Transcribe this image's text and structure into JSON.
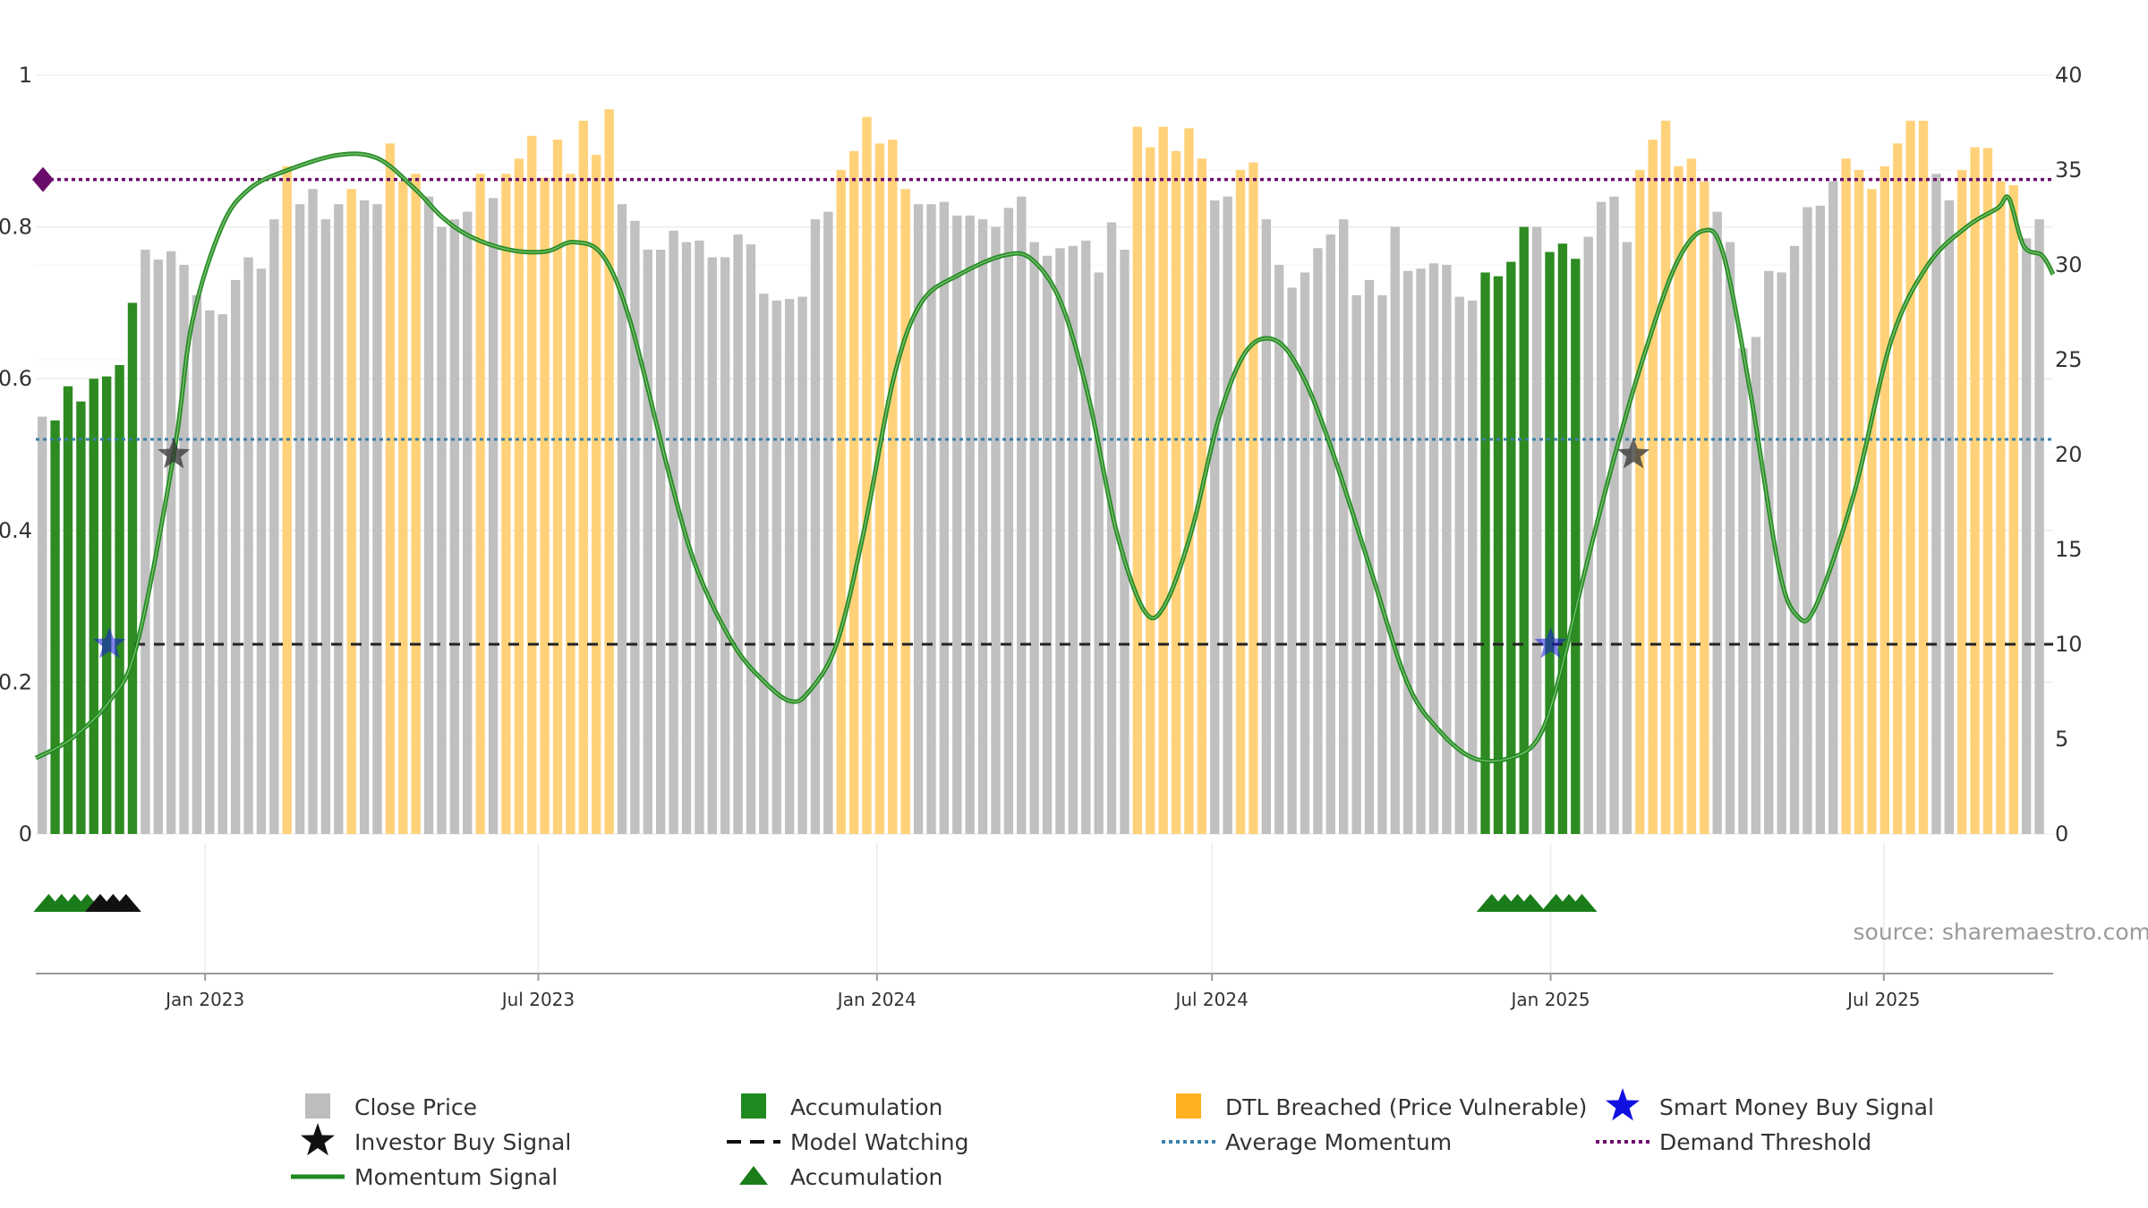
{
  "colors": {
    "bar_default": "#c0c0c0",
    "bar_accumulation": "#2e8b22",
    "bar_dtl": "#ffd27a",
    "momentum": "#1f8a1f",
    "average_momentum": "#3a7fa8",
    "demand_threshold": "#6a0d6a",
    "model_watching": "#222222",
    "smart_money": "#1a1adc",
    "investor_buy": "#333333"
  },
  "icons": {
    "smart_money": "blue-star-icon",
    "investor_buy": "black-star-icon",
    "accumulation_marker": "green-triangle-icon",
    "demand_marker": "purple-diamond-icon"
  },
  "source": "source: sharemaestro.com",
  "chart_data": {
    "type": "bar",
    "x_range": [
      "2022-10-01",
      "2025-10-01"
    ],
    "x_ticks": [
      {
        "date": "2023-01-01",
        "label": "Jan 2023"
      },
      {
        "date": "2023-07-01",
        "label": "Jul 2023"
      },
      {
        "date": "2024-01-01",
        "label": "Jan 2024"
      },
      {
        "date": "2024-07-01",
        "label": "Jul 2024"
      },
      {
        "date": "2025-01-01",
        "label": "Jan 2025"
      },
      {
        "date": "2025-07-01",
        "label": "Jul 2025"
      }
    ],
    "y_left": {
      "range": [
        0,
        1
      ],
      "ticks": [
        "0",
        "0.2",
        "0.4",
        "0.6",
        "0.8",
        "1"
      ]
    },
    "y_right": {
      "range": [
        0,
        40
      ],
      "ticks": [
        "0",
        "5",
        "10",
        "15",
        "20",
        "25",
        "30",
        "35",
        "40"
      ]
    },
    "grid": true,
    "legend_position": "bottom",
    "bars": {
      "name": "Close Price",
      "start_date": "2022-10-01",
      "step_days": 7,
      "values": [
        0.55,
        0.545,
        0.59,
        0.57,
        0.6,
        0.603,
        0.618,
        0.7,
        0.77,
        0.757,
        0.768,
        0.75,
        0.71,
        0.69,
        0.685,
        0.73,
        0.76,
        0.745,
        0.81,
        0.88,
        0.83,
        0.85,
        0.81,
        0.83,
        0.85,
        0.835,
        0.83,
        0.91,
        0.86,
        0.87,
        0.84,
        0.8,
        0.81,
        0.82,
        0.87,
        0.838,
        0.87,
        0.89,
        0.92,
        0.865,
        0.915,
        0.87,
        0.94,
        0.895,
        0.955,
        0.83,
        0.808,
        0.77,
        0.77,
        0.795,
        0.78,
        0.782,
        0.76,
        0.76,
        0.79,
        0.777,
        0.712,
        0.703,
        0.705,
        0.708,
        0.81,
        0.82,
        0.875,
        0.9,
        0.945,
        0.91,
        0.915,
        0.85,
        0.83,
        0.83,
        0.833,
        0.815,
        0.815,
        0.81,
        0.8,
        0.825,
        0.84,
        0.78,
        0.762,
        0.772,
        0.775,
        0.782,
        0.74,
        0.806,
        0.77,
        0.932,
        0.905,
        0.932,
        0.9,
        0.93,
        0.89,
        0.835,
        0.84,
        0.875,
        0.885,
        0.81,
        0.75,
        0.72,
        0.74,
        0.772,
        0.79,
        0.81,
        0.71,
        0.73,
        0.71,
        0.8,
        0.742,
        0.745,
        0.752,
        0.75,
        0.708,
        0.703,
        0.74,
        0.735,
        0.754,
        0.8,
        0.8,
        0.767,
        0.778,
        0.758,
        0.787,
        0.833,
        0.84,
        0.78,
        0.875,
        0.915,
        0.94,
        0.88,
        0.89,
        0.86,
        0.82,
        0.78,
        0.64,
        0.655,
        0.742,
        0.74,
        0.775,
        0.826,
        0.828,
        0.86,
        0.89,
        0.875,
        0.85,
        0.88,
        0.91,
        0.94,
        0.94,
        0.87,
        0.835,
        0.875,
        0.905,
        0.904,
        0.86,
        0.855,
        0.785,
        0.81
      ],
      "categories": [
        "G",
        "A",
        "A",
        "A",
        "A",
        "A",
        "A",
        "A",
        "G",
        "G",
        "G",
        "G",
        "G",
        "G",
        "G",
        "G",
        "G",
        "G",
        "G",
        "D",
        "G",
        "G",
        "G",
        "G",
        "D",
        "G",
        "G",
        "D",
        "D",
        "D",
        "G",
        "G",
        "G",
        "G",
        "D",
        "G",
        "D",
        "D",
        "D",
        "D",
        "D",
        "D",
        "D",
        "D",
        "D",
        "G",
        "G",
        "G",
        "G",
        "G",
        "G",
        "G",
        "G",
        "G",
        "G",
        "G",
        "G",
        "G",
        "G",
        "G",
        "G",
        "G",
        "D",
        "D",
        "D",
        "D",
        "D",
        "D",
        "G",
        "G",
        "G",
        "G",
        "G",
        "G",
        "G",
        "G",
        "G",
        "G",
        "G",
        "G",
        "G",
        "G",
        "G",
        "G",
        "G",
        "D",
        "D",
        "D",
        "D",
        "D",
        "D",
        "G",
        "G",
        "D",
        "D",
        "G",
        "G",
        "G",
        "G",
        "G",
        "G",
        "G",
        "G",
        "G",
        "G",
        "G",
        "G",
        "G",
        "G",
        "G",
        "G",
        "G",
        "A",
        "A",
        "A",
        "A",
        "G",
        "A",
        "A",
        "A",
        "G",
        "G",
        "G",
        "G",
        "D",
        "D",
        "D",
        "D",
        "D",
        "D",
        "G",
        "G",
        "G",
        "G",
        "G",
        "G",
        "G",
        "G",
        "G",
        "G",
        "D",
        "D",
        "D",
        "D",
        "D",
        "D",
        "D",
        "G",
        "G",
        "D",
        "D",
        "D",
        "D",
        "D",
        "G",
        "G"
      ],
      "category_names": {
        "G": "Close Price",
        "A": "Accumulation",
        "D": "DTL Breached (Price Vulnerable)"
      }
    },
    "series": [
      {
        "name": "Momentum Signal",
        "axis": "right",
        "points": [
          [
            "2022-10-01",
            4
          ],
          [
            "2022-10-20",
            5
          ],
          [
            "2022-11-10",
            7
          ],
          [
            "2022-11-25",
            10
          ],
          [
            "2022-12-15",
            20
          ],
          [
            "2022-12-25",
            27
          ],
          [
            "2023-01-10",
            32
          ],
          [
            "2023-01-25",
            34
          ],
          [
            "2023-02-15",
            35
          ],
          [
            "2023-03-15",
            35.8
          ],
          [
            "2023-04-05",
            35.6
          ],
          [
            "2023-04-25",
            34
          ],
          [
            "2023-05-10",
            32.5
          ],
          [
            "2023-05-25",
            31.5
          ],
          [
            "2023-06-15",
            30.8
          ],
          [
            "2023-07-05",
            30.7
          ],
          [
            "2023-07-20",
            31.2
          ],
          [
            "2023-08-05",
            30.5
          ],
          [
            "2023-08-20",
            27
          ],
          [
            "2023-09-10",
            19
          ],
          [
            "2023-09-25",
            14
          ],
          [
            "2023-10-15",
            10
          ],
          [
            "2023-11-01",
            8
          ],
          [
            "2023-11-15",
            7
          ],
          [
            "2023-11-25",
            7.5
          ],
          [
            "2023-12-10",
            10
          ],
          [
            "2023-12-25",
            16
          ],
          [
            "2024-01-10",
            24
          ],
          [
            "2024-01-25",
            28
          ],
          [
            "2024-02-15",
            29.5
          ],
          [
            "2024-03-10",
            30.5
          ],
          [
            "2024-03-25",
            30.3
          ],
          [
            "2024-04-10",
            28
          ],
          [
            "2024-04-25",
            23
          ],
          [
            "2024-05-10",
            16
          ],
          [
            "2024-05-25",
            11.8
          ],
          [
            "2024-06-05",
            12
          ],
          [
            "2024-06-20",
            16
          ],
          [
            "2024-07-05",
            22
          ],
          [
            "2024-07-20",
            25.5
          ],
          [
            "2024-08-05",
            26
          ],
          [
            "2024-08-20",
            24
          ],
          [
            "2024-09-05",
            20
          ],
          [
            "2024-09-25",
            14
          ],
          [
            "2024-10-15",
            8
          ],
          [
            "2024-11-01",
            5.5
          ],
          [
            "2024-11-20",
            4
          ],
          [
            "2024-12-10",
            4
          ],
          [
            "2024-12-25",
            5
          ],
          [
            "2025-01-05",
            8
          ],
          [
            "2025-01-20",
            14
          ],
          [
            "2025-02-05",
            20
          ],
          [
            "2025-02-20",
            25
          ],
          [
            "2025-03-10",
            30
          ],
          [
            "2025-03-25",
            31.8
          ],
          [
            "2025-04-05",
            30.5
          ],
          [
            "2025-04-20",
            23
          ],
          [
            "2025-05-05",
            14
          ],
          [
            "2025-05-15",
            11.5
          ],
          [
            "2025-05-25",
            12
          ],
          [
            "2025-06-15",
            18
          ],
          [
            "2025-07-05",
            26
          ],
          [
            "2025-07-25",
            30
          ],
          [
            "2025-08-15",
            32
          ],
          [
            "2025-09-01",
            33
          ],
          [
            "2025-09-07",
            33.5
          ],
          [
            "2025-09-15",
            31
          ],
          [
            "2025-09-25",
            30.5
          ],
          [
            "2025-10-01",
            29.5
          ]
        ]
      },
      {
        "name": "Model Watching",
        "axis": "right",
        "value": 10
      },
      {
        "name": "Average Momentum",
        "axis": "right",
        "value": 20.8
      },
      {
        "name": "Demand Threshold",
        "axis": "right",
        "value": 34.5
      }
    ],
    "markers": [
      {
        "name": "Smart Money Buy Signal",
        "date": "2022-11-10",
        "value": 10
      },
      {
        "name": "Smart Money Buy Signal",
        "date": "2025-01-01",
        "value": 10
      },
      {
        "name": "Investor Buy Signal",
        "date": "2022-12-15",
        "value": 20
      },
      {
        "name": "Investor Buy Signal",
        "date": "2025-02-15",
        "value": 20
      }
    ],
    "bottom_triangles": [
      {
        "date": "2022-10-08",
        "type": "Accumulation"
      },
      {
        "date": "2022-10-15",
        "type": "Accumulation"
      },
      {
        "date": "2022-10-22",
        "type": "Accumulation"
      },
      {
        "date": "2022-10-29",
        "type": "Accumulation"
      },
      {
        "date": "2022-11-05",
        "type": "Investor"
      },
      {
        "date": "2022-11-12",
        "type": "Investor"
      },
      {
        "date": "2022-11-19",
        "type": "Investor"
      },
      {
        "date": "2024-11-30",
        "type": "Accumulation"
      },
      {
        "date": "2024-12-07",
        "type": "Accumulation"
      },
      {
        "date": "2024-12-14",
        "type": "Accumulation"
      },
      {
        "date": "2024-12-21",
        "type": "Accumulation"
      },
      {
        "date": "2025-01-04",
        "type": "Accumulation"
      },
      {
        "date": "2025-01-11",
        "type": "Accumulation"
      },
      {
        "date": "2025-01-18",
        "type": "Accumulation"
      }
    ],
    "legend": [
      {
        "name": "Close Price",
        "symbol": "gray-square"
      },
      {
        "name": "Accumulation",
        "symbol": "green-square"
      },
      {
        "name": "DTL Breached (Price Vulnerable)",
        "symbol": "orange-square"
      },
      {
        "name": "Smart Money Buy Signal",
        "symbol": "blue-star"
      },
      {
        "name": "Investor Buy Signal",
        "symbol": "black-star"
      },
      {
        "name": "Model Watching",
        "symbol": "dashed-line"
      },
      {
        "name": "Average Momentum",
        "symbol": "dotted-blue-line"
      },
      {
        "name": "Demand Threshold",
        "symbol": "dotted-purple-line"
      },
      {
        "name": "Momentum Signal",
        "symbol": "green-line"
      },
      {
        "name": "Accumulation",
        "symbol": "green-triangle"
      }
    ]
  }
}
